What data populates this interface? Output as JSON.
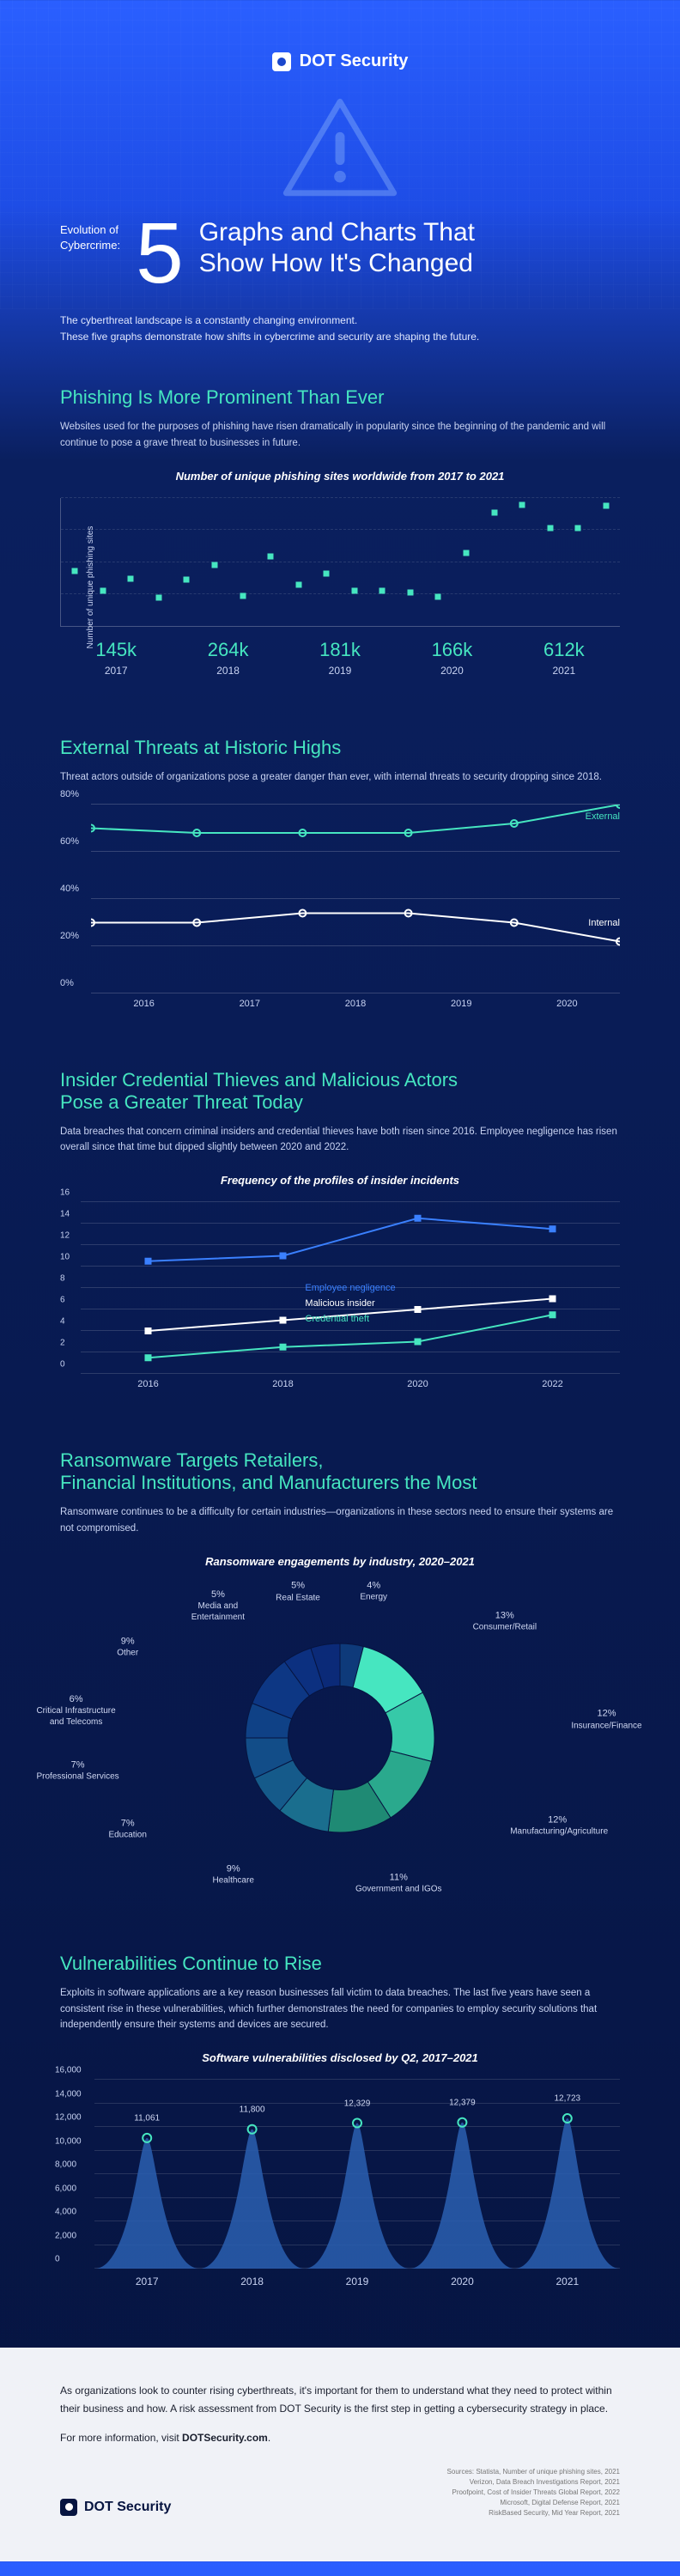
{
  "brand": {
    "name": "DOT Security"
  },
  "hero": {
    "pre_line1": "Evolution of",
    "pre_line2": "Cybercrime:",
    "number": "5",
    "title_line1": "Graphs and Charts That",
    "title_line2": "Show How It's Changed",
    "intro": "The cyberthreat landscape is a constantly changing environment.\nThese five graphs demonstrate how shifts in cybercrime and security are shaping the future."
  },
  "colors": {
    "teal": "#46e6c0",
    "teal_dark": "#1fb593",
    "white": "#ffffff",
    "grid": "rgba(255,255,255,0.15)",
    "text_muted": "#c8d3f2",
    "navy": "#061440"
  },
  "s1": {
    "heading": "Phishing Is More Prominent Than Ever",
    "heading_color": "#46e6c0",
    "desc": "Websites used for the purposes of phishing have risen dramatically in popularity since the beginning of the pandemic and will continue to pose a grave threat to businesses in future.",
    "chart_title": "Number of unique phishing sites worldwide from 2017 to 2021",
    "ylabel": "Number of unique phishing sites",
    "ylim": [
      0,
      650
    ],
    "years": [
      "2017",
      "2018",
      "2019",
      "2020",
      "2021"
    ],
    "year_values": [
      "145k",
      "264k",
      "181k",
      "166k",
      "612k"
    ],
    "point_color": "#46e6c0",
    "points": [
      280,
      180,
      240,
      145,
      235,
      310,
      155,
      355,
      210,
      265,
      180,
      180,
      170,
      150,
      370,
      575,
      615,
      500,
      500,
      612
    ]
  },
  "s2": {
    "heading": "External Threats at Historic Highs",
    "heading_color": "#46e6c0",
    "desc": "Threat actors outside of organizations pose a greater danger than ever, with internal threats to security dropping since 2018.",
    "ylim": [
      0,
      80
    ],
    "ytick_step": 20,
    "ylabels": [
      "0%",
      "20%",
      "40%",
      "60%",
      "80%"
    ],
    "years": [
      "2016",
      "2017",
      "2018",
      "2019",
      "2020"
    ],
    "external": {
      "label": "External",
      "color": "#46e6c0",
      "values": [
        70,
        68,
        68,
        68,
        72,
        80
      ]
    },
    "internal": {
      "label": "Internal",
      "color": "#ffffff",
      "values": [
        30,
        30,
        34,
        34,
        30,
        22
      ]
    }
  },
  "s3": {
    "heading_line1": "Insider Credential Thieves and Malicious Actors",
    "heading_line2": "Pose a Greater Threat Today",
    "heading_color": "#46e6c0",
    "desc": "Data breaches that concern criminal insiders and credential thieves have both risen since 2016. Employee negligence has risen overall since that time but dipped slightly between 2020 and 2022.",
    "chart_title": "Frequency of the profiles of insider incidents",
    "ylim": [
      0,
      16
    ],
    "ytick_step": 2,
    "years": [
      "2016",
      "2018",
      "2020",
      "2022"
    ],
    "series": {
      "negligence": {
        "label": "Employee negligence",
        "color": "#3a80ff",
        "values": [
          10.5,
          11.0,
          14.5,
          13.5
        ]
      },
      "insider": {
        "label": "Malicious insider",
        "color": "#ffffff",
        "values": [
          4.0,
          5.0,
          6.0,
          7.0
        ]
      },
      "cred": {
        "label": "Credential theft",
        "color": "#46e6c0",
        "values": [
          1.5,
          2.5,
          3.0,
          5.5
        ]
      }
    }
  },
  "s4": {
    "heading_line1": "Ransomware Targets Retailers,",
    "heading_line2": "Financial Institutions, and Manufacturers the Most",
    "heading_color": "#46e6c0",
    "desc": "Ransomware continues to be a difficulty for certain industries—organizations in these sectors need to ensure their systems are not compromised.",
    "chart_title": "Ransomware engagements by industry, 2020–2021",
    "donut": {
      "slices": [
        {
          "label": "Energy",
          "pct": 4,
          "color": "#0e3a7a"
        },
        {
          "label": "Consumer/Retail",
          "pct": 13,
          "color": "#46e6c0"
        },
        {
          "label": "Insurance/Finance",
          "pct": 12,
          "color": "#36c9a8"
        },
        {
          "label": "Manufacturing/Agriculture",
          "pct": 12,
          "color": "#2aa98d"
        },
        {
          "label": "Government and IGOs",
          "pct": 11,
          "color": "#1f8a74"
        },
        {
          "label": "Healthcare",
          "pct": 9,
          "color": "#1a6e8e"
        },
        {
          "label": "Education",
          "pct": 7,
          "color": "#155a8a"
        },
        {
          "label": "Professional Services",
          "pct": 7,
          "color": "#124d88"
        },
        {
          "label": "Critical Infrastructure and Telecoms",
          "pct": 6,
          "color": "#0f4186"
        },
        {
          "label": "Other",
          "pct": 9,
          "color": "#0d3784"
        },
        {
          "label": "Media and Entertainment",
          "pct": 5,
          "color": "#0c3080"
        },
        {
          "label": "Real Estate",
          "pct": 5,
          "color": "#0b2a78"
        }
      ],
      "inner_ratio": 0.55
    }
  },
  "s5": {
    "heading": "Vulnerabilities Continue to Rise",
    "heading_color": "#46e6c0",
    "desc": "Exploits in software applications are a key reason businesses fall victim to data breaches. The last five years have seen a consistent rise in these vulnerabilities, which further demonstrates the need for companies to employ security solutions that independently ensure their systems and devices are secured.",
    "chart_title": "Software vulnerabilities disclosed by Q2, 2017–2021",
    "ylim": [
      0,
      16000
    ],
    "ytick_step": 2000,
    "years": [
      "2017",
      "2018",
      "2019",
      "2020",
      "2021"
    ],
    "values": [
      11061,
      11800,
      12329,
      12379,
      12723
    ],
    "value_labels": [
      "11,061",
      "11,800",
      "12,329",
      "12,379",
      "12,723"
    ],
    "fill_color": "#2a5fb0",
    "marker_color": "#46e6c0"
  },
  "footer": {
    "body": "As organizations look to counter rising cyberthreats, it's important for them to understand what they need to protect within their business and how. A risk assessment from DOT Security is the first step in getting a cybersecurity strategy in place.",
    "more_prefix": "For more information, visit ",
    "more_link": "DOTSecurity.com",
    "sources": [
      "Sources: Statista, Number of unique phishing sites, 2021",
      "Verizon, Data Breach Investigations Report, 2021",
      "Proofpoint, Cost of Insider Threats Global Report, 2022",
      "Microsoft, Digital Defense Report, 2021",
      "RiskBased Security, Mid Year Report, 2021"
    ]
  }
}
